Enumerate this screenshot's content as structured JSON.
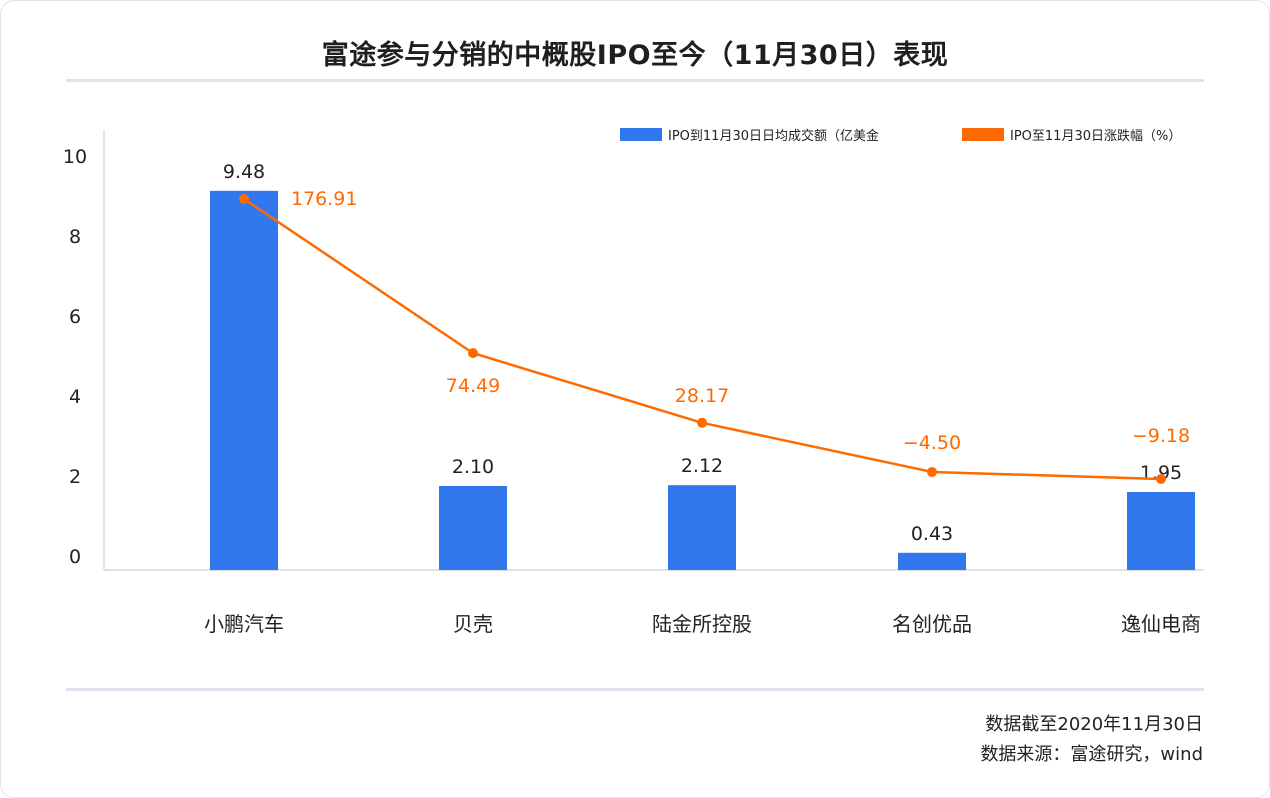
{
  "title": "富途参与分销的中概股IPO至今（11月30日）表现",
  "footnotes": {
    "cutoff": "数据截至2020年11月30日",
    "source": "数据来源：富途研究，wind"
  },
  "colors": {
    "bar": "#3178ee",
    "line": "#ff6a00",
    "axis": "#d6d9de",
    "rule": "#dde4f0"
  },
  "chart_data": {
    "type": "bar",
    "categories": [
      "小鹏汽车",
      "贝壳",
      "陆金所控股",
      "名创优品",
      "逸仙电商"
    ],
    "ylim": [
      0,
      10
    ],
    "yticks": [
      "0",
      "2",
      "4",
      "6",
      "8",
      "10"
    ],
    "legend_position": "top-right",
    "grid": false,
    "series": [
      {
        "name": "IPO到11月30日日均成交额（亿美金",
        "kind": "bar",
        "values": [
          9.48,
          2.1,
          2.12,
          0.43,
          1.95
        ],
        "labels": [
          "9.48",
          "2.10",
          "2.12",
          "0.43",
          "1.95"
        ]
      },
      {
        "name": "IPO至11月30日涨跌幅（%）",
        "kind": "line",
        "values": [
          176.91,
          74.49,
          28.17,
          -4.5,
          -9.18
        ],
        "labels": [
          "176.91",
          "74.49",
          "28.17",
          "−4.50",
          "−9.18"
        ]
      }
    ]
  }
}
